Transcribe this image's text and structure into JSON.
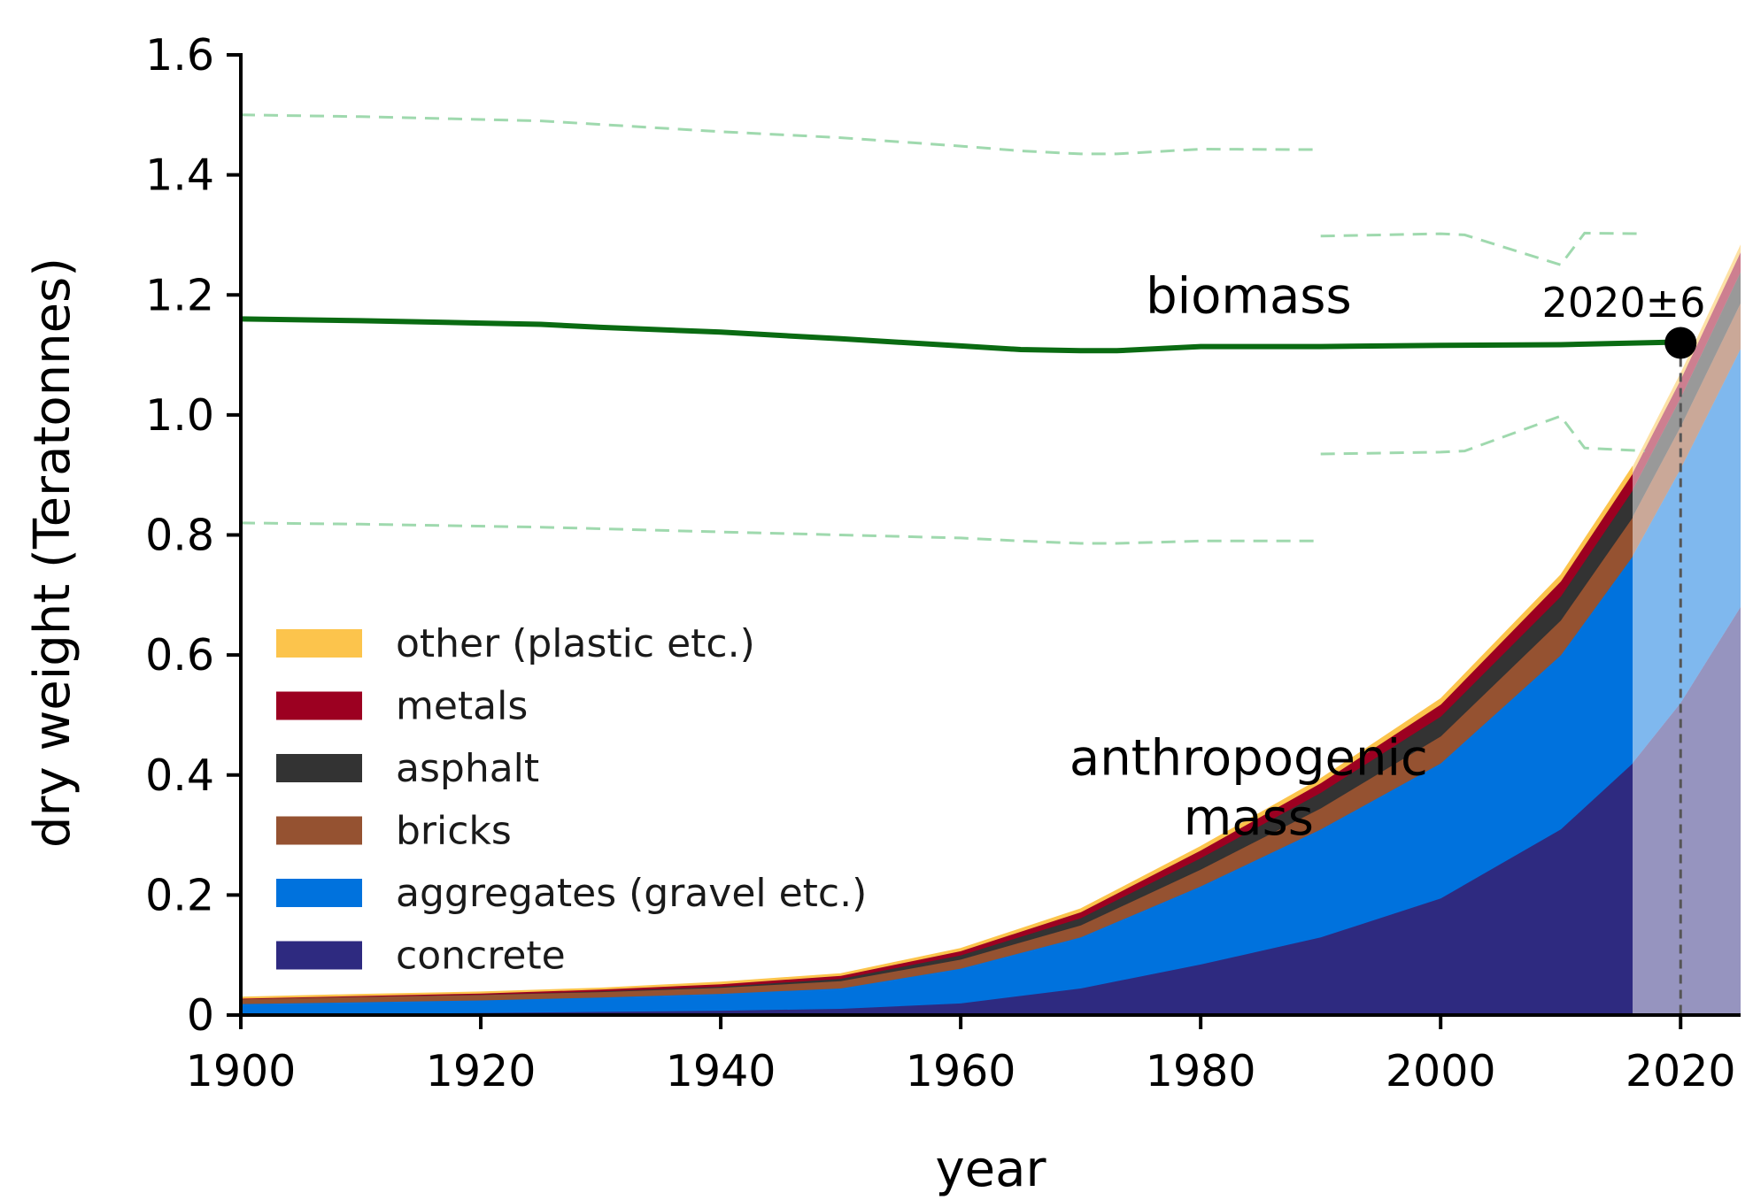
{
  "chart_data": {
    "type": "area",
    "xlabel": "year",
    "ylabel": "dry weight (Teratonnes)",
    "xlim": [
      1900,
      2025
    ],
    "ylim": [
      0,
      1.6
    ],
    "x_ticks": [
      1900,
      1920,
      1940,
      1960,
      1980,
      2000,
      2020
    ],
    "y_ticks": [
      0,
      0.2,
      0.4,
      0.6,
      0.8,
      1.0,
      1.2,
      1.4,
      1.6
    ],
    "y_tick_labels": [
      "0",
      "0.2",
      "0.4",
      "0.6",
      "0.8",
      "1.0",
      "1.2",
      "1.4",
      "1.6"
    ],
    "grid": false,
    "legend_position": "lower-left",
    "projection_start_year": 2016,
    "x": [
      1900,
      1910,
      1920,
      1930,
      1940,
      1950,
      1960,
      1970,
      1980,
      1990,
      2000,
      2010,
      2016,
      2020,
      2025
    ],
    "stacked_series": [
      {
        "name": "concrete",
        "color": "#2e2a80",
        "values": [
          0.002,
          0.003,
          0.004,
          0.006,
          0.008,
          0.011,
          0.02,
          0.045,
          0.085,
          0.13,
          0.195,
          0.31,
          0.42,
          0.52,
          0.68
        ]
      },
      {
        "name": "aggregates (gravel etc.)",
        "color": "#0072dd",
        "values": [
          0.017,
          0.019,
          0.021,
          0.024,
          0.028,
          0.034,
          0.058,
          0.085,
          0.13,
          0.18,
          0.225,
          0.29,
          0.345,
          0.39,
          0.43
        ]
      },
      {
        "name": "bricks",
        "color": "#955231",
        "values": [
          0.008,
          0.009,
          0.009,
          0.009,
          0.01,
          0.012,
          0.015,
          0.02,
          0.028,
          0.035,
          0.045,
          0.058,
          0.065,
          0.07,
          0.076
        ]
      },
      {
        "name": "asphalt",
        "color": "#333333",
        "values": [
          0.0,
          0.0,
          0.0005,
          0.001,
          0.002,
          0.004,
          0.007,
          0.012,
          0.019,
          0.026,
          0.033,
          0.04,
          0.045,
          0.048,
          0.052
        ]
      },
      {
        "name": "metals",
        "color": "#9c0021",
        "values": [
          0.001,
          0.0015,
          0.002,
          0.003,
          0.004,
          0.005,
          0.007,
          0.01,
          0.013,
          0.016,
          0.02,
          0.025,
          0.028,
          0.03,
          0.033
        ]
      },
      {
        "name": "other (plastic etc.)",
        "color": "#fcc44c",
        "values": [
          0.002,
          0.002,
          0.002,
          0.002,
          0.003,
          0.003,
          0.004,
          0.005,
          0.006,
          0.007,
          0.009,
          0.01,
          0.011,
          0.012,
          0.013
        ]
      }
    ],
    "biomass_line": {
      "label": "biomass",
      "color": "#0a6b12",
      "x": [
        1900,
        1910,
        1920,
        1925,
        1930,
        1940,
        1950,
        1960,
        1965,
        1970,
        1973,
        1980,
        1990,
        2000,
        2010,
        2019
      ],
      "values": [
        1.16,
        1.157,
        1.153,
        1.151,
        1.146,
        1.138,
        1.127,
        1.115,
        1.109,
        1.107,
        1.107,
        1.114,
        1.114,
        1.116,
        1.117,
        1.121
      ]
    },
    "biomass_uncertainty_bands": [
      {
        "x": [
          1900,
          1910,
          1925,
          1940,
          1950,
          1960,
          1965,
          1970,
          1973,
          1980,
          1990
        ],
        "values": [
          1.5,
          1.497,
          1.49,
          1.472,
          1.462,
          1.448,
          1.44,
          1.435,
          1.435,
          1.443,
          1.442
        ]
      },
      {
        "x": [
          1900,
          1910,
          1925,
          1940,
          1950,
          1960,
          1965,
          1970,
          1973,
          1980,
          1990
        ],
        "values": [
          0.82,
          0.818,
          0.813,
          0.805,
          0.8,
          0.795,
          0.79,
          0.786,
          0.786,
          0.79,
          0.79
        ]
      },
      {
        "x": [
          1990,
          2000,
          2002,
          2010,
          2012,
          2017
        ],
        "values": [
          1.298,
          1.302,
          1.3,
          1.25,
          1.303,
          1.302
        ]
      },
      {
        "x": [
          1990,
          2000,
          2002,
          2010,
          2012,
          2017
        ],
        "values": [
          0.935,
          0.938,
          0.94,
          0.998,
          0.945,
          0.94
        ]
      }
    ],
    "crossover_marker": {
      "x": 2020,
      "y": 1.12,
      "label": "2020±6"
    },
    "annotations": [
      {
        "text": "biomass",
        "x": 1984,
        "y": 1.2
      },
      {
        "text": "anthropogenic",
        "x": 1984,
        "y": 0.43
      },
      {
        "text": "mass",
        "x": 1984,
        "y": 0.33
      }
    ]
  }
}
